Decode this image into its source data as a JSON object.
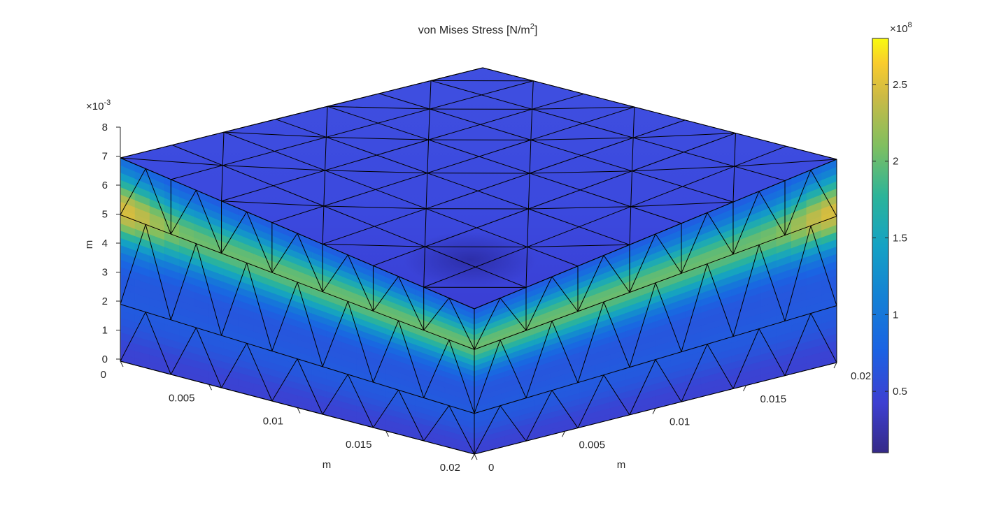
{
  "chart_data": {
    "type": "surface",
    "title": "von Mises Stress [N/m",
    "title_sup": "2",
    "title_end": "]",
    "x_axis": {
      "label": "m",
      "ticks": [
        "0",
        "0.005",
        "0.01",
        "0.015",
        "0.02"
      ],
      "range": [
        0,
        0.02
      ]
    },
    "y_axis": {
      "label": "m",
      "ticks": [
        "0",
        "0.005",
        "0.01",
        "0.015",
        "0.02"
      ],
      "range": [
        0,
        0.02
      ]
    },
    "z_axis": {
      "label": "m",
      "ticks": [
        "0",
        "1",
        "2",
        "3",
        "4",
        "5",
        "6",
        "7",
        "8"
      ],
      "multiplier_base": "×10",
      "multiplier_exp": "-3",
      "range": [
        0,
        0.008
      ]
    },
    "colorbar": {
      "ticks": [
        "0.5",
        "1",
        "1.5",
        "2",
        "2.5"
      ],
      "tick_values": [
        50000000,
        100000000,
        150000000,
        200000000,
        250000000
      ],
      "range": [
        10000000,
        280000000
      ],
      "multiplier_base": "×10",
      "multiplier_exp": "8",
      "colormap": "parula"
    },
    "mesh_color": "#000000",
    "background": "#ffffff"
  }
}
